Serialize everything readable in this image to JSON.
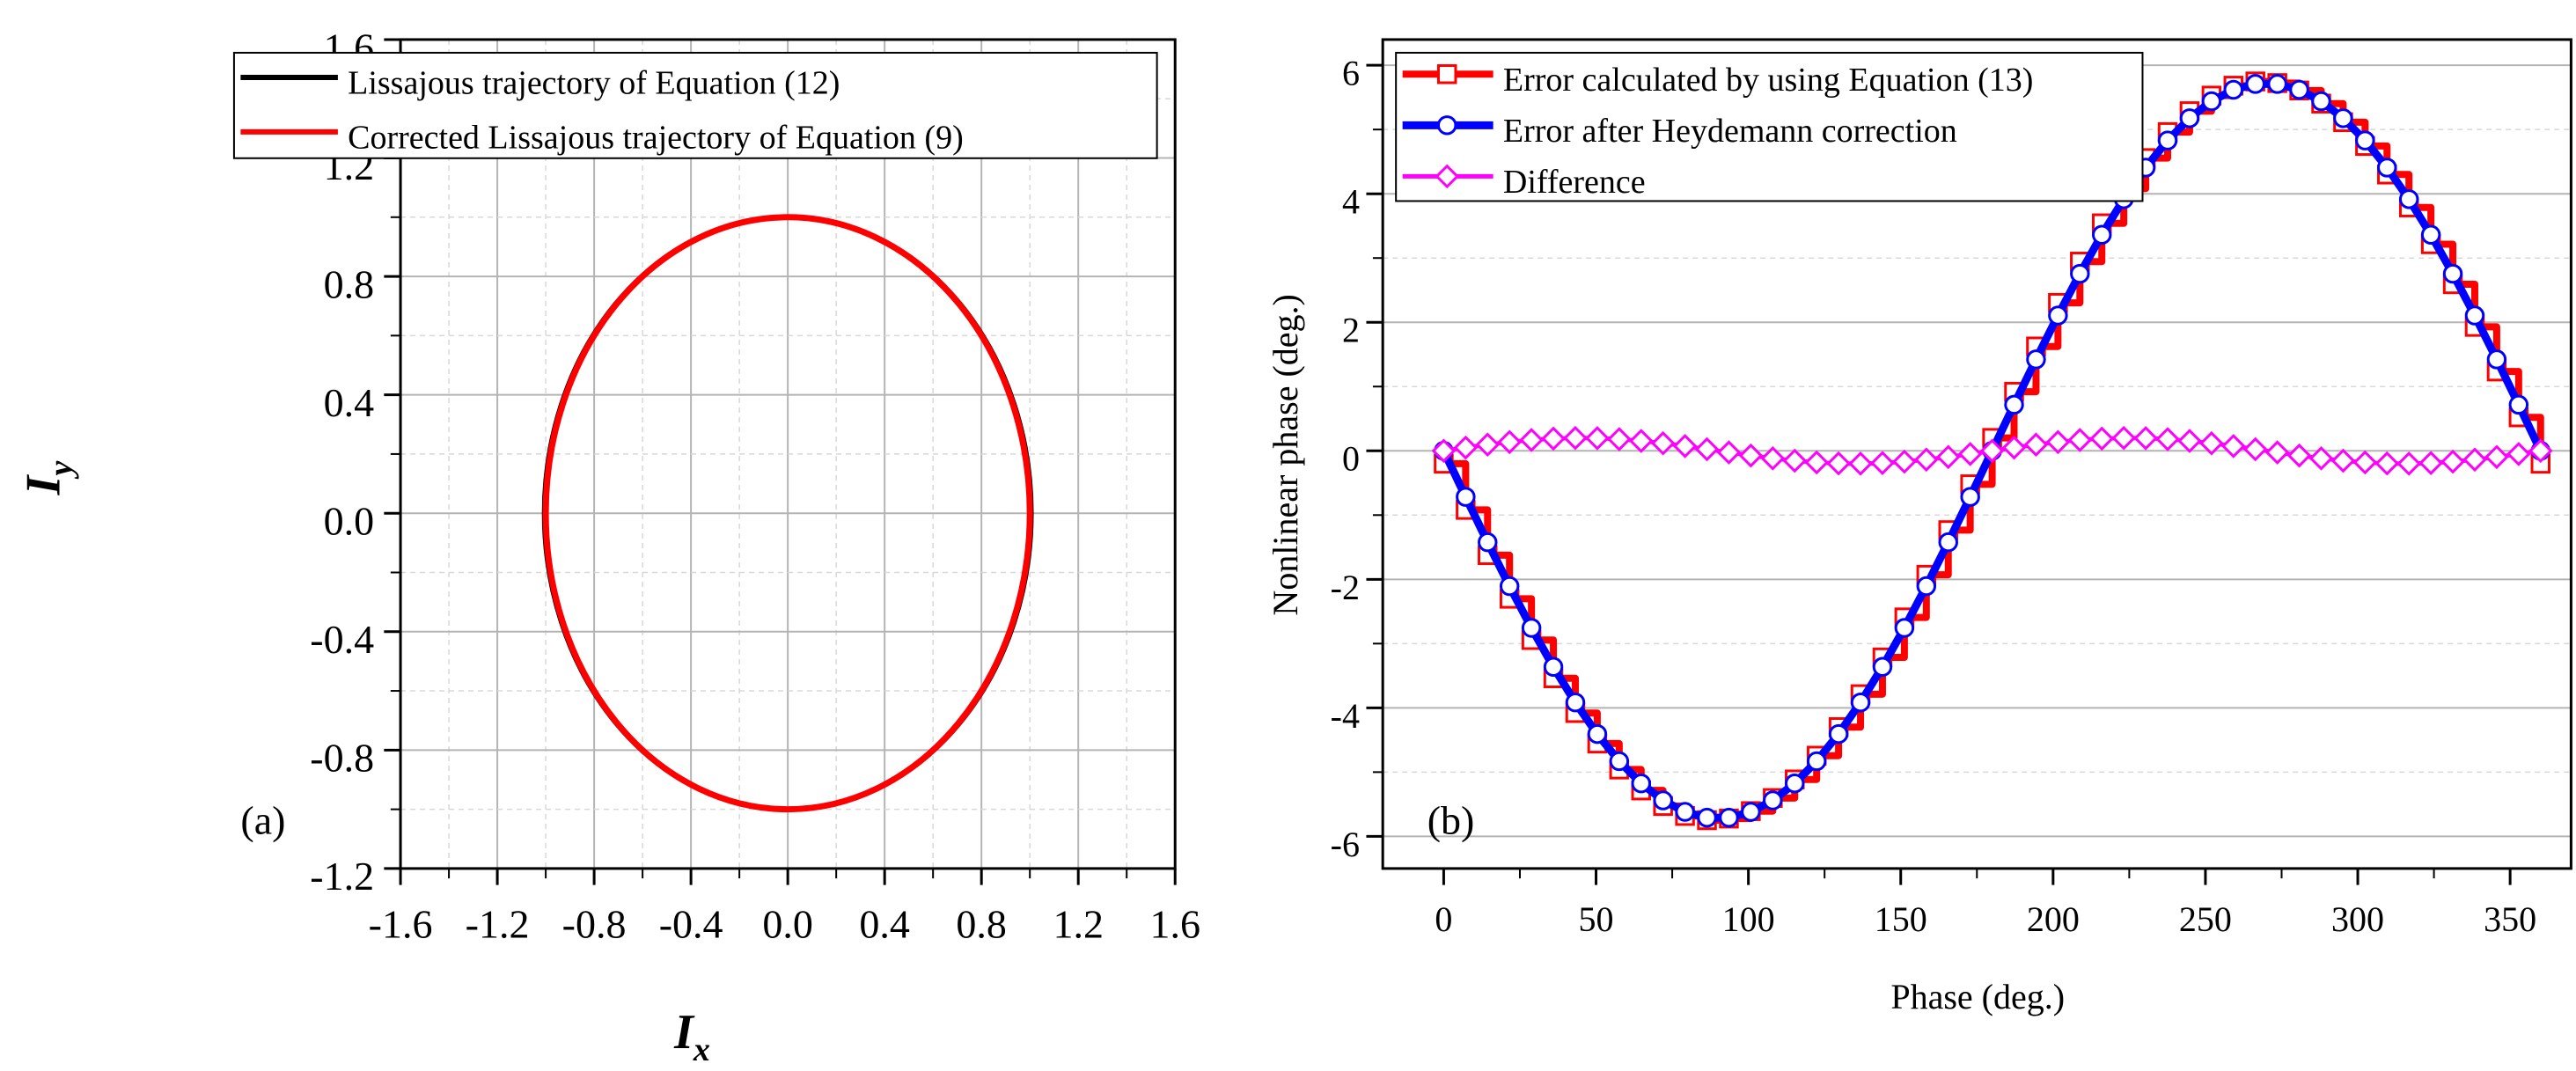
{
  "chart_data": [
    {
      "type": "line",
      "panel": "(a)",
      "xlabel": "I",
      "xlabel_sub": "x",
      "ylabel": "I",
      "ylabel_sub": "y",
      "xlim": [
        -1.6,
        1.6
      ],
      "ylim": [
        -1.2,
        1.6
      ],
      "xticks": [
        -1.6,
        -1.2,
        -0.8,
        -0.4,
        0.0,
        0.4,
        0.8,
        1.2,
        1.6
      ],
      "xtick_labels": [
        "-1.6",
        "-1.2",
        "-0.8",
        "-0.4",
        "0.0",
        "0.4",
        "0.8",
        "1.2",
        "1.6"
      ],
      "yticks": [
        -1.2,
        -0.8,
        -0.4,
        0.0,
        0.4,
        0.8,
        1.2,
        1.6
      ],
      "ytick_labels": [
        "-1.2",
        "-0.8",
        "-0.4",
        "0.0",
        "0.4",
        "0.8",
        "1.2",
        "1.6"
      ],
      "grid": true,
      "legend_position": "top-right",
      "series": [
        {
          "name": "Lissajous trajectory of Equation (12)",
          "color": "#000000",
          "shape": "ellipse",
          "center": [
            0.0,
            0.0
          ],
          "radius_x": 1.005,
          "radius_y": 1.0
        },
        {
          "name": "Corrected Lissajous trajectory of Equation (9)",
          "color": "#ff0000",
          "shape": "circle",
          "center": [
            0.0,
            0.0
          ],
          "radius_x": 1.0,
          "radius_y": 1.0
        }
      ]
    },
    {
      "type": "line",
      "panel": "(b)",
      "xlabel": "Phase (deg.)",
      "ylabel": "Nonlinear phase (deg.)",
      "xlim": [
        -20,
        370
      ],
      "ylim": [
        -6.5,
        6.4
      ],
      "xticks": [
        0,
        50,
        100,
        150,
        200,
        250,
        300,
        350
      ],
      "xtick_labels": [
        "0",
        "50",
        "100",
        "150",
        "200",
        "250",
        "300",
        "350"
      ],
      "yticks": [
        -6,
        -4,
        -2,
        0,
        2,
        4,
        6
      ],
      "ytick_labels": [
        "-6",
        "-4",
        "-2",
        "0",
        "2",
        "4",
        "6"
      ],
      "grid": true,
      "legend_position": "top-left",
      "x_samples_deg": {
        "start": 0,
        "end": 360,
        "step": 7.2
      },
      "series": [
        {
          "name": "Error calculated by using Equation (13)",
          "color": "#ff0000",
          "marker": "square",
          "amplitude": 5.75,
          "phase_offset_deg": 2,
          "expression": "-amplitude * sin(x + phase_offset)"
        },
        {
          "name": "Error after Heydemann correction",
          "color": "#0000ff",
          "marker": "circle",
          "amplitude": 5.72,
          "phase_offset_deg": 0,
          "expression": "-amplitude * sin(x + phase_offset)"
        },
        {
          "name": "Difference",
          "color": "#ff00ff",
          "marker": "diamond",
          "amplitude": 0.2,
          "phase_offset_deg": 0,
          "expression": "amplitude * sin(2x)"
        }
      ]
    }
  ]
}
